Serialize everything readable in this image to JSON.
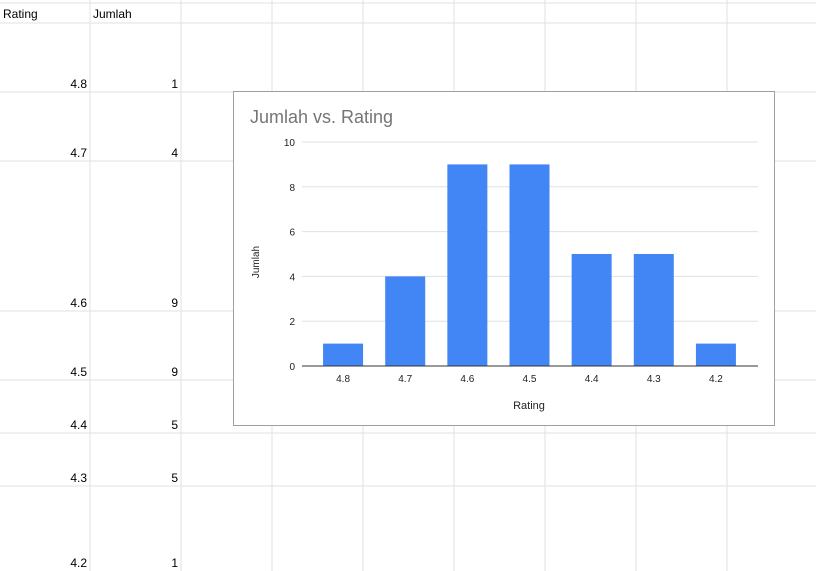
{
  "sheet": {
    "header": [
      "Rating",
      "Jumlah"
    ],
    "rows": [
      [
        4.8,
        1
      ],
      [
        4.7,
        4
      ],
      [
        4.6,
        9
      ],
      [
        4.5,
        9
      ],
      [
        4.4,
        5
      ],
      [
        4.3,
        5
      ],
      [
        4.2,
        1
      ]
    ]
  },
  "chart_data": {
    "type": "bar",
    "title": "Jumlah vs. Rating",
    "x_label": "Rating",
    "y_label": "Jumlah",
    "categories": [
      "4.8",
      "4.7",
      "4.6",
      "4.5",
      "4.4",
      "4.3",
      "4.2"
    ],
    "values": [
      1,
      4,
      9,
      9,
      5,
      5,
      1
    ],
    "color": "#4285f4",
    "ylim": [
      0,
      10
    ],
    "yticks": [
      0,
      2,
      4,
      6,
      8,
      10
    ],
    "grid": true
  }
}
